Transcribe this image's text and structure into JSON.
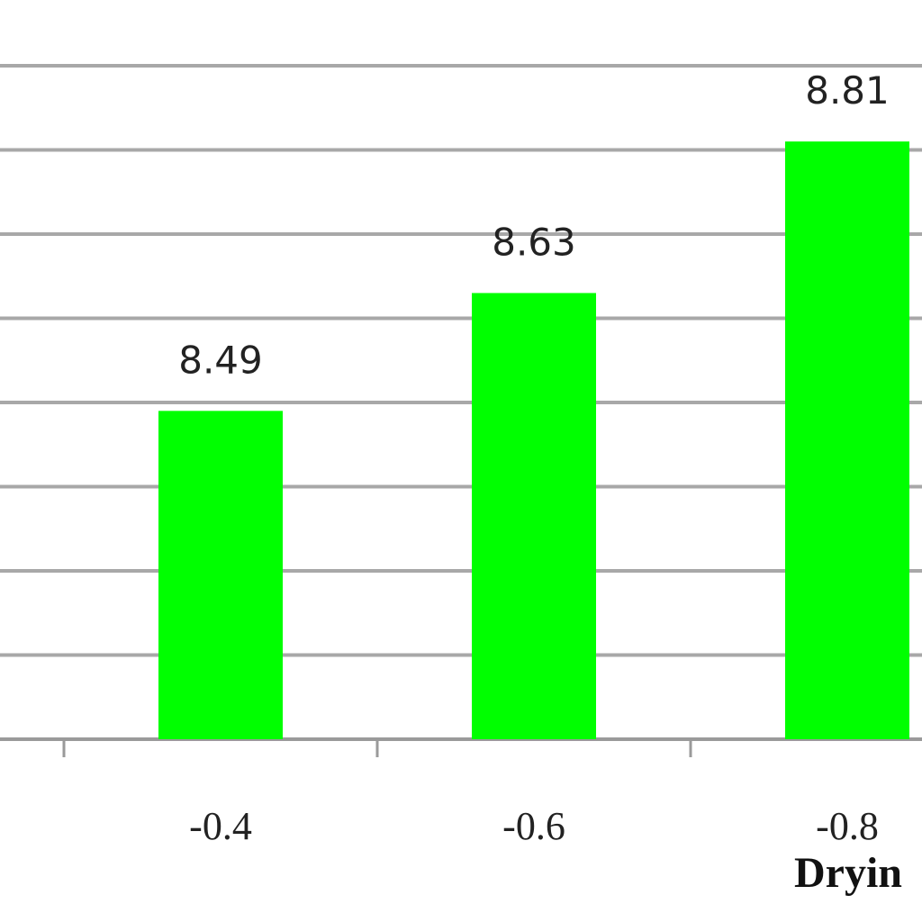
{
  "chart_data": {
    "type": "bar",
    "categories": [
      "-0.4",
      "-0.6",
      "-0.8"
    ],
    "values": [
      8.49,
      8.63,
      8.81
    ],
    "data_labels": [
      "8.49",
      "8.63",
      "8.81"
    ],
    "title": "",
    "xlabel": "Dryin",
    "ylabel": "",
    "ylim": [
      8.1,
      8.9
    ],
    "y_gridlines": [
      8.1,
      8.2,
      8.3,
      8.4,
      8.5,
      8.6,
      8.7,
      8.8,
      8.9
    ],
    "grid": true,
    "legend": "none",
    "bar_color": "#00ff00"
  }
}
